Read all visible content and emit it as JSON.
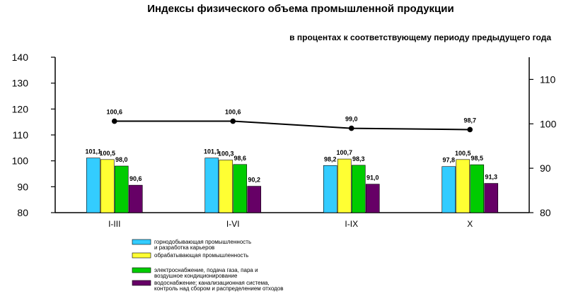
{
  "chart_data": {
    "type": "bar",
    "title": "Индексы физического объема промышленной продукции",
    "subtitle": "в процентах к соответствующему периоду предыдущего года",
    "categories": [
      "I-III",
      "I-VI",
      "I-IX",
      "X"
    ],
    "ylim": [
      80,
      140
    ],
    "yticks": [
      80,
      90,
      100,
      110,
      120,
      130,
      140
    ],
    "y2lim": [
      80,
      115
    ],
    "y2ticks": [
      80,
      90,
      100,
      110
    ],
    "grid": false,
    "legend_position": "bottom",
    "series": [
      {
        "name": "горнодобывающая промышленность и разработка карьеров",
        "legend_lines": [
          "горнодобывающая промышленность",
          "и разработка карьеров"
        ],
        "color": "#33ccff",
        "values": [
          101.1,
          101.1,
          98.2,
          97.8
        ],
        "labels": [
          "101,1",
          "101,1",
          "98,2",
          "97,8"
        ]
      },
      {
        "name": "обрабатывающая промышленность",
        "legend_lines": [
          "обрабатывающая промышленность"
        ],
        "color": "#ffff33",
        "values": [
          100.5,
          100.3,
          100.7,
          100.5
        ],
        "labels": [
          "100,5",
          "100,3",
          "100,7",
          "100,5"
        ]
      },
      {
        "name": "электроснабжение, подача газа, пара и воздушное кондиционирование",
        "legend_lines": [
          "электроснабжение, подача газа, пара и",
          "воздушное кондиционирование"
        ],
        "color": "#00cc00",
        "values": [
          98.0,
          98.6,
          98.3,
          98.5
        ],
        "labels": [
          "98,0",
          "98,6",
          "98,3",
          "98,5"
        ]
      },
      {
        "name": "водоснабжение; канализационная система, контроль над сбором и распределением отходов",
        "legend_lines": [
          "водоснабжение; канализационная система,",
          "контроль над сбором и распределением отходов"
        ],
        "color": "#660066",
        "values": [
          90.6,
          90.2,
          91.0,
          91.3
        ],
        "labels": [
          "90,6",
          "90,2",
          "91,0",
          "91,3"
        ]
      }
    ],
    "line": {
      "axis": "right",
      "color": "#000000",
      "values": [
        100.6,
        100.6,
        99.0,
        98.7
      ],
      "labels": [
        "100,6",
        "100,6",
        "99,0",
        "98,7"
      ]
    }
  }
}
